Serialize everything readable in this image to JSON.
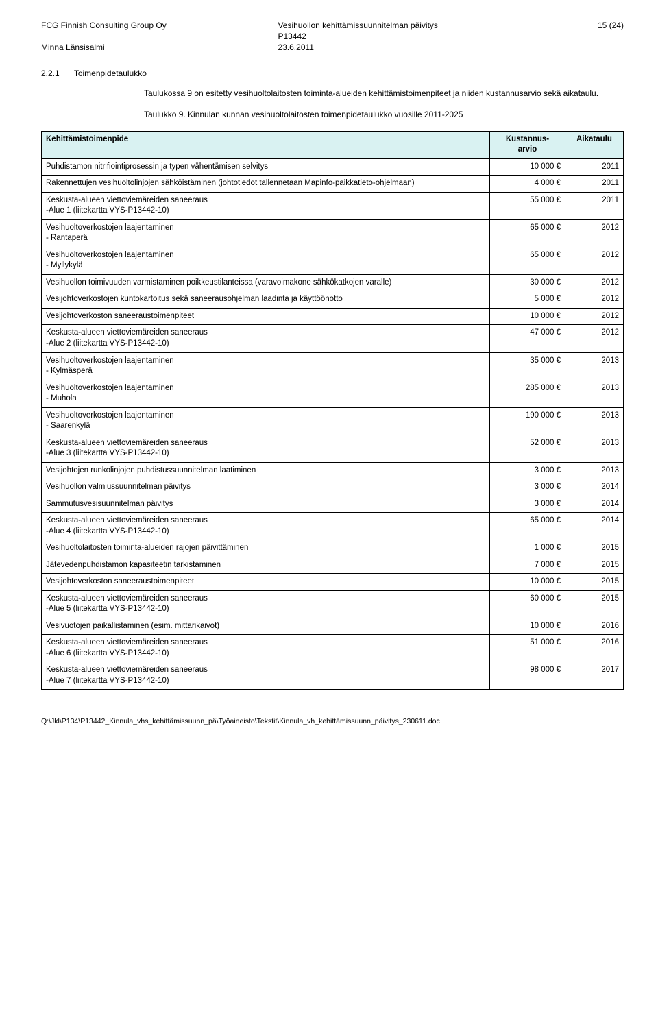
{
  "header": {
    "company": "FCG Finnish Consulting Group Oy",
    "doc_title": "Vesihuollon kehittämissuunnitelman päivitys",
    "doc_code": "P13442",
    "page_label": "15 (24)",
    "author": "Minna Länsisalmi",
    "date": "23.6.2011"
  },
  "section": {
    "number": "2.2.1",
    "title": "Toimenpidetaulukko",
    "para1": "Taulukossa 9 on esitetty vesihuoltolaitosten toiminta-alueiden kehittämistoimenpiteet ja niiden kustannusarvio sekä aikataulu.",
    "table_caption": "Taulukko 9. Kinnulan kunnan vesihuoltolaitosten toimenpidetaulukko vuosille 2011-2025"
  },
  "table": {
    "header_bg": "#d9f2f2",
    "columns": {
      "c0": "Kehittämistoimenpide",
      "c1": "Kustannus-\narvio",
      "c2": "Aikataulu"
    },
    "rows": [
      {
        "desc": "Puhdistamon nitrifiointiprosessin ja typen vähentämisen selvitys",
        "cost": "10 000 €",
        "year": "2011"
      },
      {
        "desc": "Rakennettujen vesihuoltolinjojen sähköistäminen (johtotiedot tallennetaan Mapinfo-paikkatieto-ohjelmaan)",
        "cost": "4 000 €",
        "year": "2011"
      },
      {
        "desc": "Keskusta-alueen viettoviemäreiden saneeraus\n-Alue 1 (liitekartta VYS-P13442-10)",
        "cost": "55 000 €",
        "year": "2011"
      },
      {
        "desc": "Vesihuoltoverkostojen laajentaminen\n- Rantaperä",
        "cost": "65 000 €",
        "year": "2012"
      },
      {
        "desc": "Vesihuoltoverkostojen laajentaminen\n- Myllykylä",
        "cost": "65 000 €",
        "year": "2012"
      },
      {
        "desc": "Vesihuollon toimivuuden varmistaminen poikkeustilanteissa (varavoimakone sähkökatkojen varalle)",
        "cost": "30 000 €",
        "year": "2012"
      },
      {
        "desc": "Vesijohtoverkostojen kuntokartoitus sekä saneerausohjelman laadinta ja käyttöönotto",
        "cost": "5 000 €",
        "year": "2012"
      },
      {
        "desc": "Vesijohtoverkoston saneeraustoimenpiteet",
        "cost": "10 000 €",
        "year": "2012"
      },
      {
        "desc": "Keskusta-alueen viettoviemäreiden saneeraus\n-Alue 2 (liitekartta VYS-P13442-10)",
        "cost": "47 000 €",
        "year": "2012"
      },
      {
        "desc": "Vesihuoltoverkostojen laajentaminen\n- Kylmäsperä",
        "cost": "35 000 €",
        "year": "2013"
      },
      {
        "desc": "Vesihuoltoverkostojen laajentaminen\n- Muhola",
        "cost": "285 000 €",
        "year": "2013"
      },
      {
        "desc": "Vesihuoltoverkostojen laajentaminen\n- Saarenkylä",
        "cost": "190 000 €",
        "year": "2013"
      },
      {
        "desc": "Keskusta-alueen viettoviemäreiden saneeraus\n-Alue 3 (liitekartta VYS-P13442-10)",
        "cost": "52 000 €",
        "year": "2013"
      },
      {
        "desc": "Vesijohtojen runkolinjojen puhdistussuunnitelman laatiminen",
        "cost": "3 000 €",
        "year": "2013"
      },
      {
        "desc": "Vesihuollon valmiussuunnitelman päivitys",
        "cost": "3 000 €",
        "year": "2014"
      },
      {
        "desc": "Sammutusvesisuunnitelman päivitys",
        "cost": "3 000 €",
        "year": "2014"
      },
      {
        "desc": "Keskusta-alueen viettoviemäreiden saneeraus\n-Alue 4 (liitekartta VYS-P13442-10)",
        "cost": "65 000 €",
        "year": "2014"
      },
      {
        "desc": "Vesihuoltolaitosten toiminta-alueiden rajojen päivittäminen",
        "cost": "1 000 €",
        "year": "2015"
      },
      {
        "desc": "Jätevedenpuhdistamon kapasiteetin tarkistaminen",
        "cost": "7 000 €",
        "year": "2015"
      },
      {
        "desc": "Vesijohtoverkoston saneeraustoimenpiteet",
        "cost": "10 000 €",
        "year": "2015"
      },
      {
        "desc": "Keskusta-alueen viettoviemäreiden saneeraus\n-Alue 5 (liitekartta VYS-P13442-10)",
        "cost": "60 000 €",
        "year": "2015"
      },
      {
        "desc": "Vesivuotojen paikallistaminen (esim. mittarikaivot)",
        "cost": "10 000 €",
        "year": "2016"
      },
      {
        "desc": "Keskusta-alueen viettoviemäreiden saneeraus\n-Alue 6 (liitekartta VYS-P13442-10)",
        "cost": "51 000 €",
        "year": "2016"
      },
      {
        "desc": "Keskusta-alueen viettoviemäreiden saneeraus\n-Alue 7 (liitekartta VYS-P13442-10)",
        "cost": "98 000 €",
        "year": "2017"
      }
    ]
  },
  "footer": {
    "path": "Q:\\Jkl\\P134\\P13442_Kinnula_vhs_kehittämissuunn_pä\\Työaineisto\\Tekstit\\Kinnula_vh_kehittämissuunn_päivitys_230611.doc"
  }
}
